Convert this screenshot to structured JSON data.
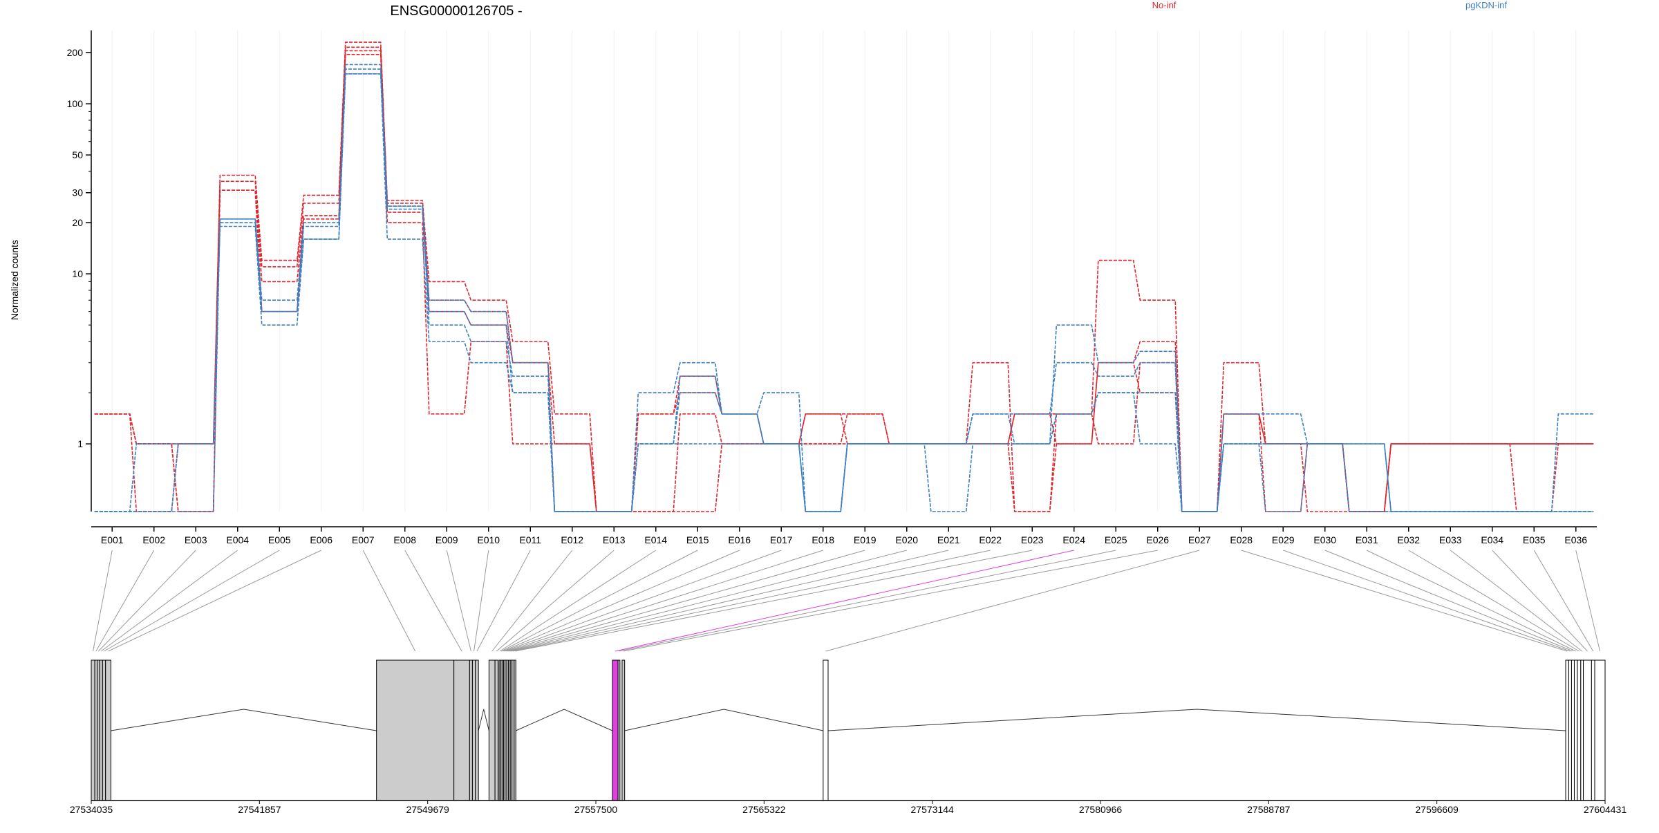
{
  "chart_data": {
    "type": "line",
    "title": "ENSG00000126705 -",
    "ylabel": "Normalized counts",
    "yscale": "log",
    "ylim": [
      0.4,
      270
    ],
    "yticks": [
      1,
      10,
      20,
      30,
      50,
      100,
      200
    ],
    "ytick_labels": [
      "1",
      "10",
      "20",
      "30",
      "50",
      "100",
      "200"
    ],
    "legend": [
      {
        "name": "No-inf",
        "color": "#e0252c"
      },
      {
        "name": "pgKDN-inf",
        "color": "#3b7fc4"
      }
    ],
    "categories": [
      "E001",
      "E002",
      "E003",
      "E004",
      "E005",
      "E006",
      "E007",
      "E008",
      "E009",
      "E010",
      "E011",
      "E012",
      "E013",
      "E014",
      "E015",
      "E016",
      "E017",
      "E018",
      "E019",
      "E020",
      "E021",
      "E022",
      "E023",
      "E024",
      "E025",
      "E026",
      "E027",
      "E028",
      "E029",
      "E030",
      "E031",
      "E032",
      "E033",
      "E034",
      "E035",
      "E036"
    ],
    "highlighted_exon": "E024",
    "highlight_color": "#e040e0",
    "series": [
      {
        "group": "No-inf",
        "color": "#e0252c",
        "values": [
          1.5,
          0.4,
          1,
          38,
          12,
          29,
          230,
          27,
          9,
          7,
          4,
          1.5,
          0.4,
          0.4,
          0.4,
          1,
          1,
          1,
          1.5,
          1,
          1,
          3,
          0.4,
          1.5,
          12,
          7,
          0.4,
          3,
          1,
          1,
          0.4,
          1,
          1,
          1,
          1,
          1
        ]
      },
      {
        "group": "No-inf",
        "color": "#e0252c",
        "values": [
          1.5,
          1,
          1,
          35,
          11,
          26,
          215,
          26,
          7,
          6,
          3,
          1,
          0.4,
          1.5,
          2,
          1.5,
          1,
          1.5,
          1.5,
          1,
          1,
          1,
          0.4,
          1,
          3,
          4,
          0.4,
          1.5,
          1,
          0.4,
          0.4,
          1,
          1,
          1,
          0.4,
          1
        ]
      },
      {
        "group": "No-inf",
        "color": "#e0252c",
        "values": [
          1.5,
          1,
          0.4,
          31,
          9,
          22,
          205,
          23,
          6,
          5,
          3,
          0.4,
          0.4,
          1.5,
          2.5,
          1.5,
          1,
          1.5,
          1,
          1,
          1,
          1,
          1.5,
          1.5,
          1,
          3,
          0.4,
          1.5,
          0.4,
          1,
          0.4,
          1,
          1,
          1,
          1,
          1
        ]
      },
      {
        "group": "No-inf",
        "color": "#e0252c",
        "values": [
          1.5,
          1,
          0.4,
          31,
          6,
          21,
          195,
          20,
          1.5,
          4,
          1,
          1,
          0.4,
          0.4,
          1.5,
          1,
          1,
          1,
          1,
          1,
          1,
          1,
          1.5,
          1,
          3,
          2,
          0.4,
          1.5,
          1,
          1,
          0.4,
          1,
          1,
          1,
          1,
          1
        ]
      },
      {
        "group": "pgKDN-inf",
        "color": "#3b7fc4",
        "values": [
          0.4,
          1,
          1,
          21,
          7,
          20,
          170,
          25,
          7,
          6,
          3,
          0.4,
          0.4,
          2,
          3,
          1.5,
          2,
          0.4,
          1,
          1,
          1,
          1.5,
          1,
          5,
          3,
          3.5,
          0.4,
          1,
          1,
          1,
          1,
          0.4,
          0.4,
          0.4,
          0.4,
          1.5
        ]
      },
      {
        "group": "pgKDN-inf",
        "color": "#3b7fc4",
        "values": [
          0.4,
          0.4,
          1,
          20,
          6,
          19,
          160,
          24,
          6,
          5,
          2,
          0.4,
          0.4,
          1,
          2.5,
          1.5,
          1,
          0.4,
          1,
          1,
          1,
          1.5,
          1.5,
          3,
          2.5,
          3,
          0.4,
          1.5,
          1.5,
          1,
          1,
          0.4,
          0.4,
          0.4,
          0.4,
          0.4
        ]
      },
      {
        "group": "pgKDN-inf",
        "color": "#3b7fc4",
        "values": [
          0.4,
          0.4,
          1,
          19,
          5,
          16,
          150,
          16,
          4,
          3,
          2,
          0.4,
          0.4,
          1,
          2,
          1.5,
          1,
          0.4,
          1,
          1,
          0.4,
          1,
          1,
          1.5,
          2,
          2,
          0.4,
          1,
          1,
          1,
          0.4,
          0.4,
          0.4,
          0.4,
          0.4,
          0.4
        ]
      },
      {
        "group": "pgKDN-inf",
        "color": "#3b7fc4",
        "values": [
          0.4,
          0.4,
          0.4,
          21,
          6,
          16,
          150,
          25,
          5,
          4,
          2.5,
          0.4,
          0.4,
          1,
          1,
          1,
          1,
          0.4,
          1,
          1,
          1,
          1,
          1,
          1.5,
          2,
          1,
          0.4,
          1,
          0.4,
          1,
          0.4,
          0.4,
          0.4,
          0.4,
          0.4,
          0.4
        ]
      }
    ],
    "gene_model": {
      "xmin": 27534035,
      "xmax": 27604431,
      "ticks": [
        27534035,
        27541857,
        27549679,
        27557500,
        27565322,
        27573144,
        27580966,
        27588787,
        27596609,
        27604431
      ],
      "tick_labels": [
        "27534035",
        "27541857",
        "27549679",
        "27557500",
        "27565322",
        "27573144",
        "27580966",
        "27588787",
        "27596609",
        "27604431"
      ],
      "exons": [
        {
          "id": "E001",
          "start": 27534035,
          "end": 27534200,
          "fill": "#cccccc"
        },
        {
          "id": "E002",
          "start": 27534200,
          "end": 27534310,
          "fill": "#cccccc"
        },
        {
          "id": "E003",
          "start": 27534310,
          "end": 27534430,
          "fill": "#cccccc"
        },
        {
          "id": "E004",
          "start": 27534430,
          "end": 27534560,
          "fill": "#cccccc"
        },
        {
          "id": "E005",
          "start": 27534560,
          "end": 27534700,
          "fill": "#cccccc"
        },
        {
          "id": "E006",
          "start": 27534700,
          "end": 27534950,
          "fill": "#cccccc"
        },
        {
          "id": "E007",
          "start": 27547300,
          "end": 27550900,
          "fill": "#cccccc"
        },
        {
          "id": "E008",
          "start": 27550900,
          "end": 27551630,
          "fill": "#cccccc"
        },
        {
          "id": "E009",
          "start": 27551630,
          "end": 27551760,
          "fill": "#cccccc"
        },
        {
          "id": "E010",
          "start": 27551760,
          "end": 27551900,
          "fill": "#cccccc"
        },
        {
          "id": "E011",
          "start": 27551900,
          "end": 27552040,
          "fill": "#cccccc"
        },
        {
          "id": "E012",
          "start": 27552530,
          "end": 27552810,
          "fill": "#cccccc"
        },
        {
          "id": "E013",
          "start": 27552810,
          "end": 27552950,
          "fill": "#cccccc"
        },
        {
          "id": "E014",
          "start": 27553000,
          "end": 27553070,
          "fill": "#cccccc"
        },
        {
          "id": "E015",
          "start": 27553070,
          "end": 27553140,
          "fill": "#cccccc"
        },
        {
          "id": "E016",
          "start": 27553140,
          "end": 27553210,
          "fill": "#cccccc"
        },
        {
          "id": "E017",
          "start": 27553210,
          "end": 27553280,
          "fill": "#cccccc"
        },
        {
          "id": "E018",
          "start": 27553280,
          "end": 27553360,
          "fill": "#cccccc"
        },
        {
          "id": "E019",
          "start": 27553360,
          "end": 27553440,
          "fill": "#cccccc"
        },
        {
          "id": "E020",
          "start": 27553440,
          "end": 27553520,
          "fill": "#cccccc"
        },
        {
          "id": "E021",
          "start": 27553520,
          "end": 27553600,
          "fill": "#cccccc"
        },
        {
          "id": "E022",
          "start": 27553600,
          "end": 27553700,
          "fill": "#cccccc"
        },
        {
          "id": "E023",
          "start": 27553700,
          "end": 27553780,
          "fill": "#cccccc"
        },
        {
          "id": "E024",
          "start": 27558270,
          "end": 27558530,
          "fill": "#e040e0"
        },
        {
          "id": "E025",
          "start": 27558530,
          "end": 27558620,
          "fill": "#cccccc"
        },
        {
          "id": "E026",
          "start": 27558720,
          "end": 27558840,
          "fill": "#cccccc"
        },
        {
          "id": "E027",
          "start": 27568070,
          "end": 27568300,
          "fill": "#ffffff"
        },
        {
          "id": "E028",
          "start": 27602600,
          "end": 27602740,
          "fill": "#ffffff"
        },
        {
          "id": "E029",
          "start": 27602740,
          "end": 27602870,
          "fill": "#ffffff"
        },
        {
          "id": "E030",
          "start": 27602870,
          "end": 27603000,
          "fill": "#ffffff"
        },
        {
          "id": "E031",
          "start": 27603000,
          "end": 27603140,
          "fill": "#ffffff"
        },
        {
          "id": "E032",
          "start": 27603140,
          "end": 27603300,
          "fill": "#ffffff"
        },
        {
          "id": "E033",
          "start": 27603300,
          "end": 27603420,
          "fill": "#ffffff"
        },
        {
          "id": "E034",
          "start": 27603420,
          "end": 27603800,
          "fill": "#ffffff"
        },
        {
          "id": "E035",
          "start": 27603800,
          "end": 27603950,
          "fill": "#ffffff"
        },
        {
          "id": "E036",
          "start": 27603950,
          "end": 27604431,
          "fill": "#ffffff"
        }
      ],
      "introns": [
        {
          "start": 27534950,
          "end": 27547300
        },
        {
          "start": 27552040,
          "end": 27552530
        },
        {
          "start": 27553780,
          "end": 27558270
        },
        {
          "start": 27558840,
          "end": 27568070
        },
        {
          "start": 27568300,
          "end": 27602600
        }
      ]
    }
  }
}
